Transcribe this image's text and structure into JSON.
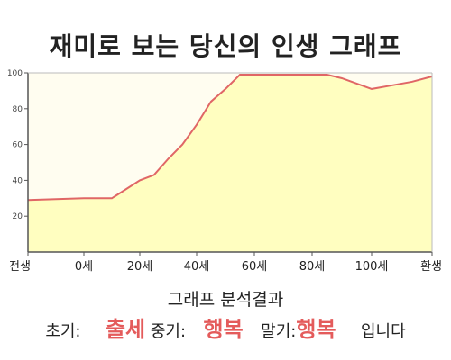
{
  "chart_data": {
    "type": "area",
    "title": "재미로 보는 당신의 인생 그래프",
    "x_categories": [
      "전생",
      "0세",
      "20세",
      "40세",
      "60세",
      "80세",
      "100세",
      "환생"
    ],
    "ylim": [
      0,
      100
    ],
    "y_ticks": [
      "20",
      "40",
      "60",
      "80",
      "100"
    ],
    "grid": false,
    "series": [
      {
        "x": [
          -10,
          0,
          10,
          15,
          20,
          25,
          30,
          35,
          40,
          45,
          50,
          55,
          60,
          65,
          70,
          75,
          80,
          85,
          90,
          95,
          100,
          105,
          110,
          115
        ],
        "y": [
          29,
          30,
          30,
          35,
          40,
          43,
          52,
          60,
          71,
          84,
          91,
          99,
          99,
          99,
          99,
          99,
          99,
          99,
          97,
          94,
          91,
          93,
          95,
          98
        ]
      }
    ],
    "colors": {
      "fill": "#fffec0",
      "line": "#e06666",
      "axis": "#555555"
    }
  },
  "analysis": {
    "heading": "그래프 분석결과",
    "early_label": "초기:",
    "early_value": "출세",
    "mid_label": "중기:",
    "mid_value": "행복",
    "late_label": "말기:",
    "late_value": "행복",
    "suffix": "입니다"
  }
}
